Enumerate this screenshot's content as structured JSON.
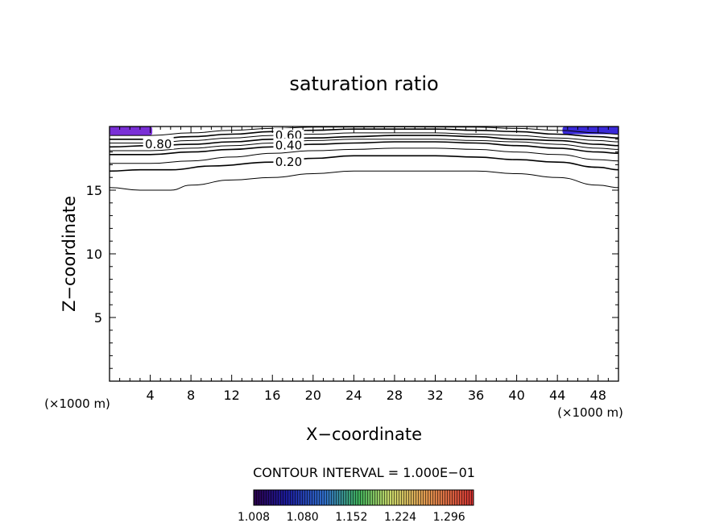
{
  "chart_data": {
    "type": "contour",
    "title": "saturation ratio",
    "xlabel": "X−coordinate",
    "ylabel": "Z−coordinate",
    "x_unit_left": "(×1000 m)",
    "x_unit_right": "(×1000 m)",
    "xlim": [
      0,
      50
    ],
    "ylim": [
      0,
      20
    ],
    "x_ticks": [
      4,
      8,
      12,
      16,
      20,
      24,
      28,
      32,
      36,
      40,
      44,
      48
    ],
    "y_ticks": [
      5,
      10,
      15
    ],
    "grid": false,
    "contour_interval_text": "CONTOUR INTERVAL = 1.000E−01",
    "contour_labels": [
      {
        "text": "0.80",
        "x": 4.8,
        "z": 18.6
      },
      {
        "text": "0.60",
        "x": 17.6,
        "z": 19.3
      },
      {
        "text": "0.40",
        "x": 17.6,
        "z": 18.5
      },
      {
        "text": "0.20",
        "x": 17.6,
        "z": 17.2
      }
    ],
    "contours": [
      {
        "level": 0.1,
        "points": [
          [
            0,
            15.2
          ],
          [
            3,
            15.0
          ],
          [
            6,
            15.0
          ],
          [
            8,
            15.4
          ],
          [
            12,
            15.8
          ],
          [
            16,
            16.0
          ],
          [
            20,
            16.3
          ],
          [
            24,
            16.5
          ],
          [
            28,
            16.5
          ],
          [
            32,
            16.5
          ],
          [
            36,
            16.5
          ],
          [
            40,
            16.3
          ],
          [
            44,
            16.0
          ],
          [
            48,
            15.4
          ],
          [
            50,
            15.2
          ]
        ]
      },
      {
        "level": 0.2,
        "points": [
          [
            0,
            16.5
          ],
          [
            3,
            16.6
          ],
          [
            6,
            16.6
          ],
          [
            10,
            16.9
          ],
          [
            16,
            17.2
          ],
          [
            20,
            17.5
          ],
          [
            24,
            17.7
          ],
          [
            28,
            17.7
          ],
          [
            32,
            17.7
          ],
          [
            36,
            17.6
          ],
          [
            40,
            17.4
          ],
          [
            44,
            17.2
          ],
          [
            48,
            16.8
          ],
          [
            50,
            16.6
          ]
        ]
      },
      {
        "level": 0.3,
        "points": [
          [
            0,
            17.1
          ],
          [
            4,
            17.1
          ],
          [
            8,
            17.3
          ],
          [
            12,
            17.6
          ],
          [
            16,
            17.9
          ],
          [
            20,
            18.1
          ],
          [
            24,
            18.2
          ],
          [
            28,
            18.3
          ],
          [
            32,
            18.3
          ],
          [
            36,
            18.2
          ],
          [
            40,
            18.0
          ],
          [
            44,
            17.8
          ],
          [
            48,
            17.4
          ],
          [
            50,
            17.3
          ]
        ]
      },
      {
        "level": 0.4,
        "points": [
          [
            0,
            17.8
          ],
          [
            4,
            17.8
          ],
          [
            8,
            18.0
          ],
          [
            12,
            18.2
          ],
          [
            16,
            18.4
          ],
          [
            20,
            18.6
          ],
          [
            24,
            18.7
          ],
          [
            28,
            18.8
          ],
          [
            32,
            18.8
          ],
          [
            36,
            18.7
          ],
          [
            40,
            18.5
          ],
          [
            44,
            18.3
          ],
          [
            48,
            18.0
          ],
          [
            50,
            17.9
          ]
        ]
      },
      {
        "level": 0.5,
        "points": [
          [
            0,
            18.1
          ],
          [
            4,
            18.1
          ],
          [
            8,
            18.3
          ],
          [
            12,
            18.5
          ],
          [
            16,
            18.7
          ],
          [
            20,
            18.9
          ],
          [
            24,
            19.0
          ],
          [
            28,
            19.0
          ],
          [
            32,
            19.0
          ],
          [
            36,
            18.9
          ],
          [
            40,
            18.8
          ],
          [
            44,
            18.6
          ],
          [
            48,
            18.3
          ],
          [
            50,
            18.2
          ]
        ]
      },
      {
        "level": 0.6,
        "points": [
          [
            0,
            18.4
          ],
          [
            4,
            18.5
          ],
          [
            8,
            18.6
          ],
          [
            12,
            18.8
          ],
          [
            16,
            19.0
          ],
          [
            20,
            19.1
          ],
          [
            24,
            19.2
          ],
          [
            28,
            19.3
          ],
          [
            32,
            19.3
          ],
          [
            36,
            19.2
          ],
          [
            40,
            19.0
          ],
          [
            44,
            18.9
          ],
          [
            48,
            18.6
          ],
          [
            50,
            18.5
          ]
        ]
      },
      {
        "level": 0.7,
        "points": [
          [
            0,
            18.7
          ],
          [
            4,
            18.7
          ],
          [
            8,
            18.9
          ],
          [
            12,
            19.1
          ],
          [
            16,
            19.3
          ],
          [
            20,
            19.4
          ],
          [
            24,
            19.5
          ],
          [
            28,
            19.5
          ],
          [
            32,
            19.5
          ],
          [
            36,
            19.4
          ],
          [
            40,
            19.3
          ],
          [
            44,
            19.1
          ],
          [
            48,
            18.9
          ],
          [
            50,
            18.8
          ]
        ]
      },
      {
        "level": 0.8,
        "points": [
          [
            0,
            19.0
          ],
          [
            4,
            19.0
          ],
          [
            8,
            19.2
          ],
          [
            12,
            19.4
          ],
          [
            16,
            19.6
          ],
          [
            20,
            19.7
          ],
          [
            24,
            19.8
          ],
          [
            28,
            19.8
          ],
          [
            32,
            19.8
          ],
          [
            36,
            19.7
          ],
          [
            40,
            19.6
          ],
          [
            44,
            19.4
          ],
          [
            48,
            19.2
          ],
          [
            50,
            19.1
          ]
        ]
      },
      {
        "level": 0.9,
        "points": [
          [
            0,
            19.3
          ],
          [
            4,
            19.3
          ],
          [
            8,
            19.5
          ],
          [
            12,
            19.7
          ],
          [
            16,
            19.85
          ],
          [
            20,
            19.95
          ],
          [
            28,
            19.97
          ],
          [
            36,
            19.95
          ],
          [
            40,
            19.85
          ],
          [
            44,
            19.7
          ],
          [
            48,
            19.5
          ],
          [
            50,
            19.4
          ]
        ]
      }
    ],
    "filled_regions": [
      {
        "x_range": [
          0,
          4.2
        ],
        "z_range": [
          19.3,
          20
        ],
        "color": "#7a2fd6"
      },
      {
        "x_range": [
          44.5,
          50
        ],
        "z_range": [
          19.4,
          20
        ],
        "color": "#3a2ad8"
      }
    ],
    "colorbar": {
      "labels": [
        "1.008",
        "1.080",
        "1.152",
        "1.224",
        "1.296"
      ],
      "min": 1.008,
      "max": 1.332
    }
  }
}
